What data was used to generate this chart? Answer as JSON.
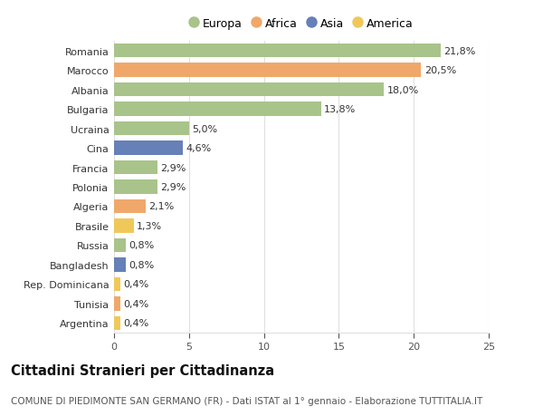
{
  "countries": [
    "Romania",
    "Marocco",
    "Albania",
    "Bulgaria",
    "Ucraina",
    "Cina",
    "Francia",
    "Polonia",
    "Algeria",
    "Brasile",
    "Russia",
    "Bangladesh",
    "Rep. Dominicana",
    "Tunisia",
    "Argentina"
  ],
  "values": [
    21.8,
    20.5,
    18.0,
    13.8,
    5.0,
    4.6,
    2.9,
    2.9,
    2.1,
    1.3,
    0.8,
    0.8,
    0.4,
    0.4,
    0.4
  ],
  "labels": [
    "21,8%",
    "20,5%",
    "18,0%",
    "13,8%",
    "5,0%",
    "4,6%",
    "2,9%",
    "2,9%",
    "2,1%",
    "1,3%",
    "0,8%",
    "0,8%",
    "0,4%",
    "0,4%",
    "0,4%"
  ],
  "continents": [
    "Europa",
    "Africa",
    "Europa",
    "Europa",
    "Europa",
    "Asia",
    "Europa",
    "Europa",
    "Africa",
    "America",
    "Europa",
    "Asia",
    "America",
    "Africa",
    "America"
  ],
  "continent_colors": {
    "Europa": "#a8c48a",
    "Africa": "#f0a86a",
    "Asia": "#6680b8",
    "America": "#f0c85a"
  },
  "legend_order": [
    "Europa",
    "Africa",
    "Asia",
    "America"
  ],
  "title": "Cittadini Stranieri per Cittadinanza",
  "subtitle": "COMUNE DI PIEDIMONTE SAN GERMANO (FR) - Dati ISTAT al 1° gennaio - Elaborazione TUTTITALIA.IT",
  "xlim": [
    0,
    25
  ],
  "xticks": [
    0,
    5,
    10,
    15,
    20,
    25
  ],
  "background_color": "#ffffff",
  "grid_color": "#e0e0e0",
  "bar_height": 0.72,
  "label_fontsize": 8,
  "title_fontsize": 10.5,
  "subtitle_fontsize": 7.5,
  "tick_fontsize": 8,
  "legend_fontsize": 9
}
